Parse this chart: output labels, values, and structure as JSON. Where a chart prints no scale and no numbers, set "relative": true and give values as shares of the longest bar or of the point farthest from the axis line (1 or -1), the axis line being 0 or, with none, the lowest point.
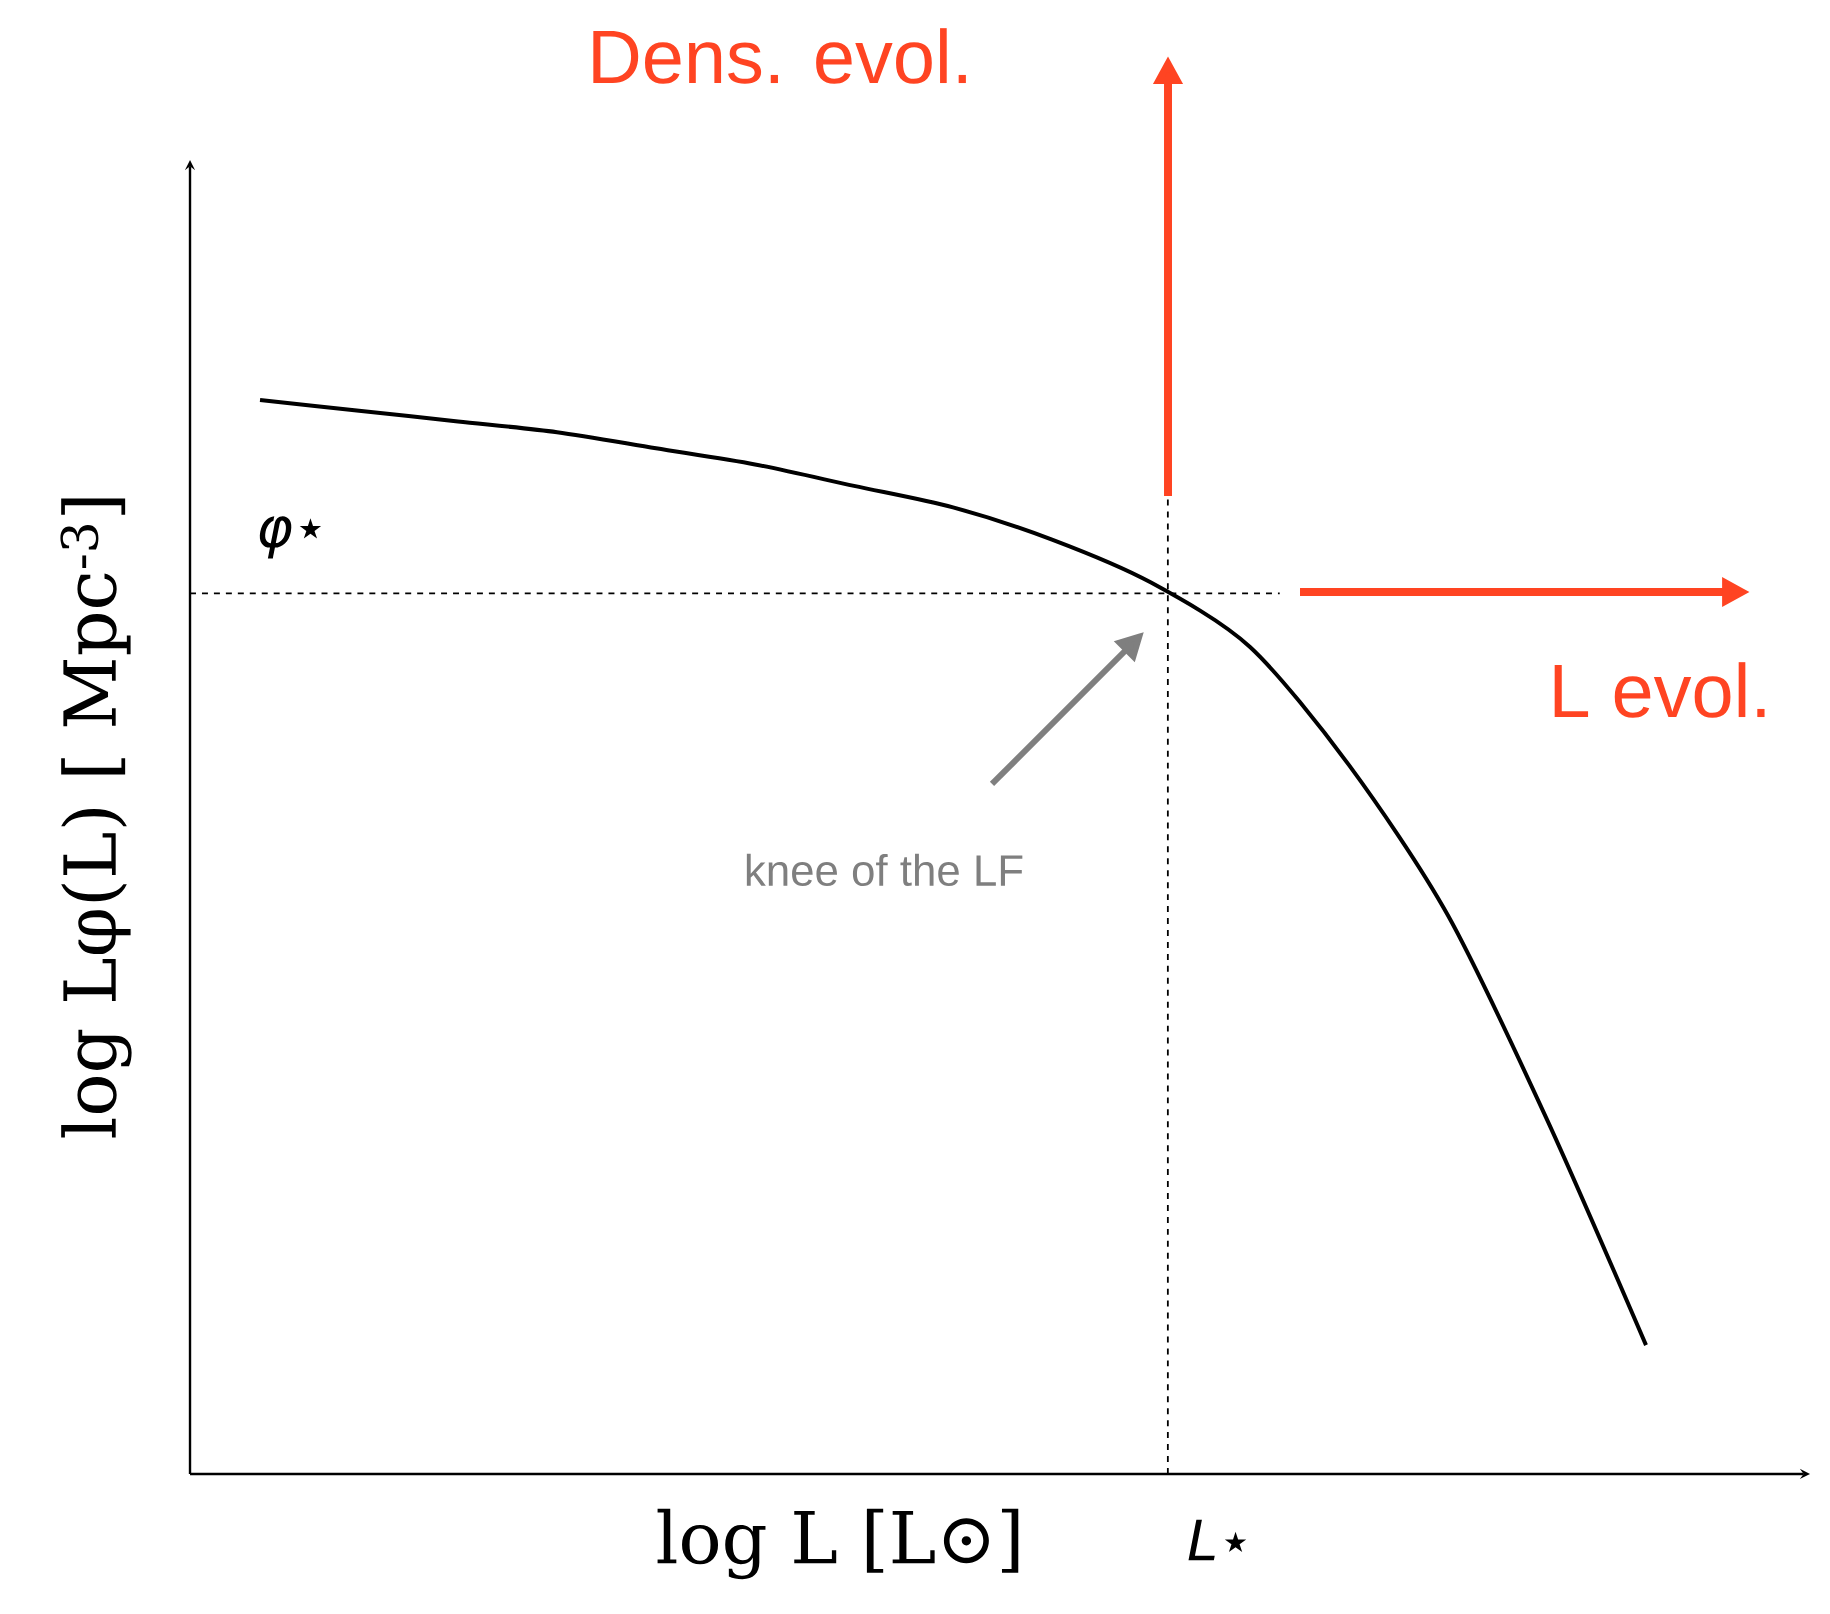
{
  "chart_data": {
    "type": "line",
    "relative": true,
    "color": "#000000",
    "xlabel": "log L [L⊙]",
    "ylabel": "log Lφ(L) [ Mpc$^{-3}$]",
    "categories": [
      null,
      null,
      null,
      null,
      null,
      null,
      null,
      null,
      null,
      null,
      null,
      null,
      null,
      null,
      null
    ],
    "values": [
      1,
      0.99,
      0.98,
      0.97,
      0.955,
      0.94,
      0.92,
      0.9,
      0.87,
      0.83,
      0.77,
      0.66,
      0.52,
      0.33,
      0.12
    ],
    "ref_lines": [
      {
        "axis": "y",
        "value": 0.82,
        "label": "φ⋆",
        "line_style": "dashed",
        "color": "#000000"
      }
    ],
    "annotations": [
      "Dens. evol.",
      "L evol.",
      "knee of the LF",
      "L⋆"
    ]
  }
}
